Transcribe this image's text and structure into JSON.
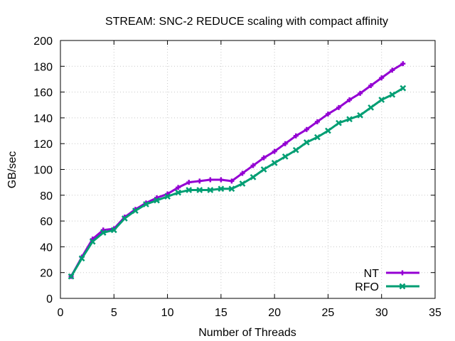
{
  "chart_data": {
    "type": "line",
    "title": "STREAM: SNC-2 REDUCE scaling with compact affinity",
    "xlabel": "Number of Threads",
    "ylabel": "GB/sec",
    "xlim": [
      0,
      35
    ],
    "ylim": [
      0,
      200
    ],
    "xticks": [
      0,
      5,
      10,
      15,
      20,
      25,
      30,
      35
    ],
    "yticks": [
      0,
      20,
      40,
      60,
      80,
      100,
      120,
      140,
      160,
      180,
      200
    ],
    "grid": true,
    "legend_position": "bottom-right",
    "x": [
      1,
      2,
      3,
      4,
      5,
      6,
      7,
      8,
      9,
      10,
      11,
      12,
      13,
      14,
      15,
      16,
      17,
      18,
      19,
      20,
      21,
      22,
      23,
      24,
      25,
      26,
      27,
      28,
      29,
      30,
      31,
      32
    ],
    "series": [
      {
        "name": "NT",
        "color": "#9400d3",
        "marker": "plus",
        "values": [
          17,
          32,
          46,
          53,
          54,
          63,
          69,
          74,
          78,
          81,
          86,
          90,
          91,
          92,
          92,
          91,
          97,
          103,
          109,
          114,
          120,
          126,
          131,
          137,
          143,
          148,
          154,
          159,
          165,
          171,
          177,
          182
        ]
      },
      {
        "name": "RFO",
        "color": "#009e73",
        "marker": "x",
        "values": [
          17,
          31,
          44,
          51,
          53,
          62,
          68,
          73,
          76,
          79,
          82,
          84,
          84,
          84,
          85,
          85,
          89,
          94,
          100,
          105,
          110,
          115,
          121,
          125,
          130,
          136,
          139,
          142,
          148,
          154,
          158,
          163
        ]
      }
    ]
  }
}
